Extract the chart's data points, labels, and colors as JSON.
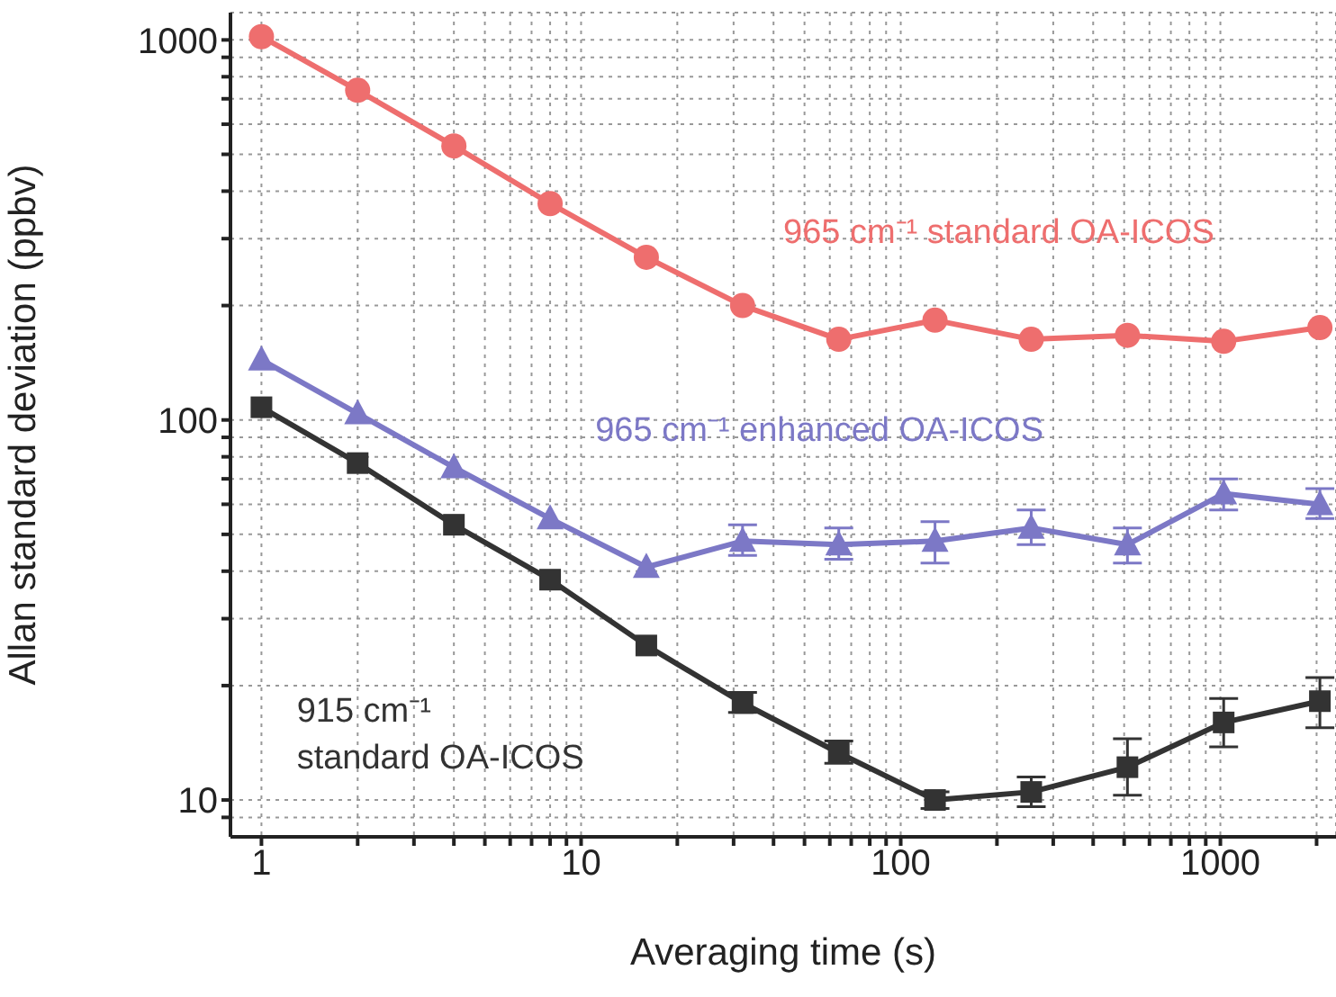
{
  "chart_data": {
    "type": "line",
    "xlabel": "Averaging time (s)",
    "ylabel": "Allan standard deviation (ppbv)",
    "log": "xy",
    "grid": true,
    "x": [
      1,
      2,
      4,
      8,
      16,
      32,
      64,
      128,
      256,
      512,
      1024,
      2048
    ],
    "xlim": [
      0.8,
      2300
    ],
    "ylim": [
      8,
      1180
    ],
    "xticks": [
      1,
      {
        "value": 2,
        "label": null
      },
      {
        "value": 3,
        "label": null
      },
      {
        "value": 4,
        "label": null
      },
      {
        "value": 5,
        "label": null
      },
      {
        "value": 6,
        "label": null
      },
      {
        "value": 7,
        "label": null
      },
      {
        "value": 8,
        "label": null
      },
      {
        "value": 9,
        "label": null
      },
      10,
      {
        "value": 20,
        "label": null
      },
      {
        "value": 30,
        "label": null
      },
      {
        "value": 40,
        "label": null
      },
      {
        "value": 50,
        "label": null
      },
      {
        "value": 60,
        "label": null
      },
      {
        "value": 70,
        "label": null
      },
      {
        "value": 80,
        "label": null
      },
      {
        "value": 90,
        "label": null
      },
      100,
      {
        "value": 200,
        "label": null
      },
      {
        "value": 300,
        "label": null
      },
      {
        "value": 400,
        "label": null
      },
      {
        "value": 500,
        "label": null
      },
      {
        "value": 600,
        "label": null
      },
      {
        "value": 700,
        "label": null
      },
      {
        "value": 800,
        "label": null
      },
      {
        "value": 900,
        "label": null
      },
      1000,
      {
        "value": 2000,
        "label": null
      }
    ],
    "yticks": [
      {
        "value": 9,
        "label": null
      },
      10,
      {
        "value": 20,
        "label": null
      },
      {
        "value": 30,
        "label": null
      },
      {
        "value": 40,
        "label": null
      },
      {
        "value": 50,
        "label": null
      },
      {
        "value": 60,
        "label": null
      },
      {
        "value": 70,
        "label": null
      },
      {
        "value": 80,
        "label": null
      },
      {
        "value": 90,
        "label": null
      },
      100,
      {
        "value": 200,
        "label": null
      },
      {
        "value": 300,
        "label": null
      },
      {
        "value": 400,
        "label": null
      },
      {
        "value": 500,
        "label": null
      },
      {
        "value": 600,
        "label": null
      },
      {
        "value": 700,
        "label": null
      },
      {
        "value": 800,
        "label": null
      },
      {
        "value": 900,
        "label": null
      },
      1000
    ],
    "series": [
      {
        "name": "965 cm⁻¹ standard OA-ICOS",
        "color": "#ee6e6e",
        "marker": "circle",
        "values": [
          1020,
          737,
          526,
          371,
          268,
          200,
          163,
          183,
          163,
          167,
          161,
          175
        ]
      },
      {
        "name": "965 cm⁻¹ enhanced OA-ICOS",
        "color": "#7c78c6",
        "marker": "triangle",
        "values": [
          144,
          104,
          75,
          55,
          41,
          48,
          47,
          48,
          52,
          47,
          64,
          60
        ],
        "errors": [
          null,
          null,
          null,
          null,
          null,
          [
            44,
            53
          ],
          [
            43,
            52
          ],
          [
            42,
            54
          ],
          [
            47,
            58
          ],
          [
            42,
            52
          ],
          [
            58,
            70
          ],
          [
            55,
            66
          ]
        ]
      },
      {
        "name": "915 cm⁻¹ standard OA-ICOS",
        "color": "#333333",
        "marker": "square",
        "values": [
          108,
          77,
          53,
          38,
          25.5,
          18,
          13.3,
          10,
          10.5,
          12.2,
          16,
          18.2
        ],
        "errors": [
          null,
          null,
          null,
          null,
          null,
          [
            17,
            19.2
          ],
          [
            12.5,
            14.3
          ],
          [
            9.5,
            10.5
          ],
          [
            9.6,
            11.5
          ],
          [
            10.3,
            14.5
          ],
          [
            13.8,
            18.5
          ],
          [
            15.5,
            21
          ]
        ]
      }
    ]
  }
}
